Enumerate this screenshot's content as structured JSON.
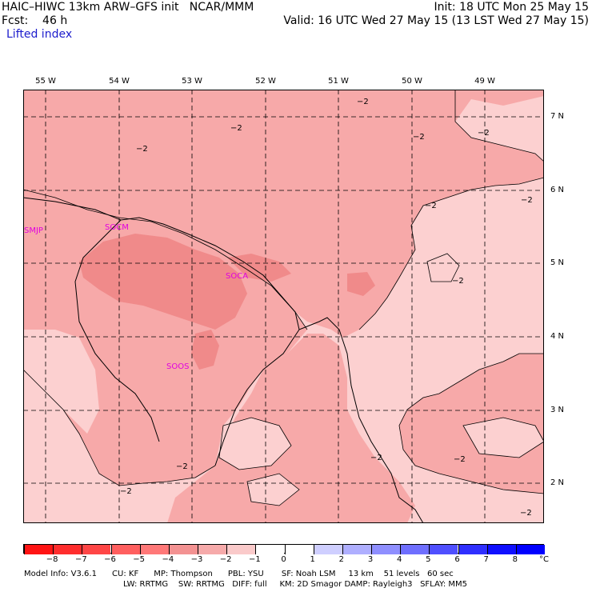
{
  "header": {
    "line1_left": "HAIC–HIWC 13km ARW–GFS init   NCAR/MMM",
    "line1_right": "Init: 18 UTC Mon 25 May 15",
    "line2_left": "Fcst:    46 h",
    "line2_right": "Valid: 16 UTC Wed 27 May 15 (13 LST Wed 27 May 15)",
    "field_name": "Lifted index"
  },
  "longitudes": [
    "55 W",
    "54 W",
    "53 W",
    "52 W",
    "51 W",
    "50 W",
    "49 W"
  ],
  "latitudes": [
    "7 N",
    "6 N",
    "5 N",
    "4 N",
    "3 N",
    "2 N"
  ],
  "places": [
    "SMJP",
    "SOCM",
    "SOCA",
    "SOOS"
  ],
  "contour_label": "−2",
  "colorbar": {
    "ticks": [
      "−8",
      "−7",
      "−6",
      "−5",
      "−4",
      "−3",
      "−2",
      "−1",
      "0",
      "1",
      "2",
      "3",
      "4",
      "5",
      "6",
      "7",
      "8"
    ],
    "unit": "°C",
    "colors": [
      "#ff1414",
      "#ff2d2d",
      "#ff4646",
      "#ff5f5f",
      "#ff7878",
      "#f39292",
      "#f6aaaa",
      "#facaca",
      "#ffffff",
      "#ffffff",
      "#cfcfff",
      "#afafff",
      "#8f8fff",
      "#6f6fff",
      "#4f4fff",
      "#2f2fff",
      "#0f0fff",
      "#0000ff"
    ]
  },
  "map_colors": {
    "light": "#fcd0d0",
    "medium": "#f7a9a9",
    "dark": "#f08a8a",
    "line": "#000000"
  },
  "footer": {
    "line1": "Model Info: V3.6.1      CU: KF      MP: Thompson      PBL: YSU       SF: Noah LSM     13 km    51 levels   60 sec",
    "line2": "LW: RRTMG    SW: RRTMG   DIFF: full     KM: 2D Smagor DAMP: Rayleigh3   SFLAY: MM5"
  }
}
